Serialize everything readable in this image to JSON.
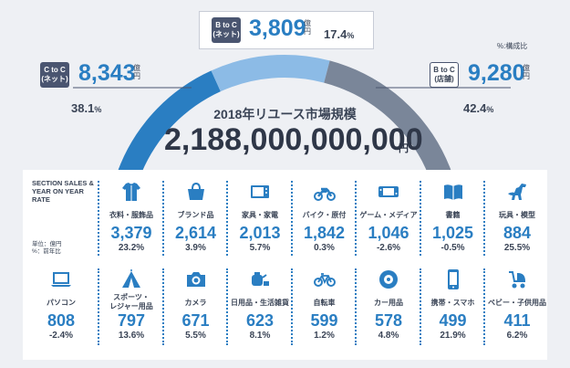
{
  "note": "%:構成比",
  "segments": [
    {
      "key": "c2c",
      "box_line1": "C to C",
      "box_line2": "(ネット)",
      "value": "8,343",
      "unit_top": "億",
      "unit_bottom": "円",
      "share": "38.1",
      "share_unit": "%"
    },
    {
      "key": "b2c_net",
      "box_line1": "B to C",
      "box_line2": "(ネット)",
      "value": "3,809",
      "unit_top": "億",
      "unit_bottom": "円",
      "share": "17.4",
      "share_unit": "%"
    },
    {
      "key": "b2c_store",
      "box_line1": "B to C",
      "box_line2": "(店舗)",
      "value": "9,280",
      "unit_top": "億",
      "unit_bottom": "円",
      "share": "42.4",
      "share_unit": "%"
    }
  ],
  "market": {
    "title": "2018年リユース市場規模",
    "total": "2,188,000,000,000",
    "unit": "円"
  },
  "legend": {
    "title": "SECTION SALES & YEAR ON YEAR RATE",
    "unit_line1": "単位：億円",
    "unit_line2": "%：前年比"
  },
  "colors": {
    "dark": "#4a5570",
    "blue": "#2a7ec2",
    "c2c": "#2a7ec2",
    "b2c_net": "#8cbbe6",
    "b2c_store": "#7a8699"
  },
  "chart_data": {
    "type": "table",
    "arc": {
      "type": "pie",
      "categories": [
        "C to C (ネット)",
        "B to C (ネット)",
        "B to C (店舗)"
      ],
      "values": [
        8343,
        3809,
        9280
      ],
      "shares": [
        38.1,
        17.4,
        42.4
      ]
    },
    "categories": [
      {
        "name": "衣料・服飾品",
        "value": "3,379",
        "yoy": "23.2%",
        "icon": "shirt-icon"
      },
      {
        "name": "ブランド品",
        "value": "2,614",
        "yoy": "3.9%",
        "icon": "handbag-icon"
      },
      {
        "name": "家具・家電",
        "value": "2,013",
        "yoy": "5.7%",
        "icon": "microwave-icon"
      },
      {
        "name": "バイク・原付",
        "value": "1,842",
        "yoy": "0.3%",
        "icon": "motorbike-icon"
      },
      {
        "name": "ゲーム・メディア",
        "value": "1,046",
        "yoy": "-2.6%",
        "icon": "game-console-icon"
      },
      {
        "name": "書籍",
        "value": "1,025",
        "yoy": "-0.5%",
        "icon": "book-icon"
      },
      {
        "name": "玩具・模型",
        "value": "884",
        "yoy": "25.5%",
        "icon": "dinosaur-icon"
      },
      {
        "name": "パソコン",
        "value": "808",
        "yoy": "-2.4%",
        "icon": "laptop-icon"
      },
      {
        "name": "スポーツ・\nレジャー用品",
        "value": "797",
        "yoy": "13.6%",
        "icon": "tent-icon"
      },
      {
        "name": "カメラ",
        "value": "671",
        "yoy": "5.5%",
        "icon": "camera-icon"
      },
      {
        "name": "日用品・生活雑貨",
        "value": "623",
        "yoy": "8.1%",
        "icon": "teapot-icon"
      },
      {
        "name": "自転車",
        "value": "599",
        "yoy": "1.2%",
        "icon": "bicycle-icon"
      },
      {
        "name": "カー用品",
        "value": "578",
        "yoy": "4.8%",
        "icon": "tire-icon"
      },
      {
        "name": "携帯・スマホ",
        "value": "499",
        "yoy": "21.9%",
        "icon": "smartphone-icon"
      },
      {
        "name": "ベビー・子供用品",
        "value": "411",
        "yoy": "6.2%",
        "icon": "stroller-icon"
      }
    ]
  }
}
